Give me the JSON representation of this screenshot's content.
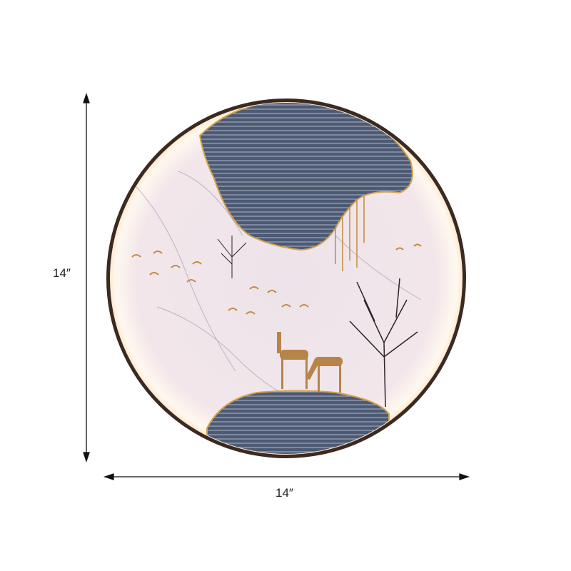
{
  "dimensions": {
    "height_label": "14″",
    "width_label": "14″"
  },
  "product": {
    "subject": "round-led-wall-art",
    "colors": {
      "ring": "#3a2a22",
      "glow": "#fbe9e6",
      "stone": "#4a5670",
      "gold": "#c48a3e"
    }
  }
}
